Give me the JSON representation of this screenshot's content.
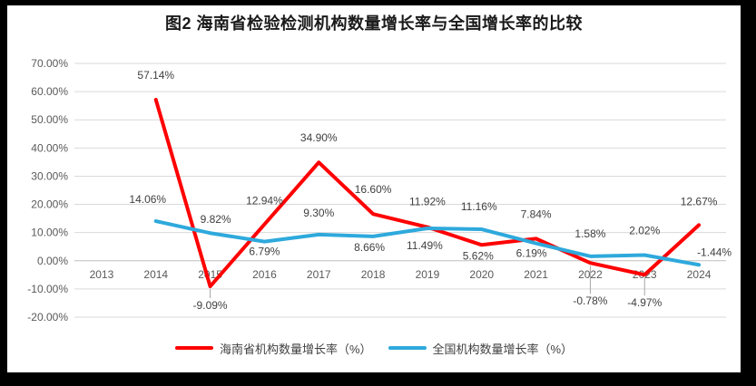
{
  "window": {
    "frame_background": "#000000",
    "chart_background": "#ffffff"
  },
  "title": "图2 海南省检验检测机构数量增长率与全国增长率的比较",
  "chart_data": {
    "type": "line",
    "title": "图2 海南省检验检测机构数量增长率与全国增长率的比较",
    "categories": [
      "2013",
      "2014",
      "2015",
      "2016",
      "2017",
      "2018",
      "2019",
      "2020",
      "2021",
      "2022",
      "2023",
      "2024"
    ],
    "series": [
      {
        "name": "海南省机构数量增长率（%）",
        "color": "#FF0000",
        "values": [
          null,
          57.14,
          -9.09,
          12.94,
          34.9,
          16.6,
          11.92,
          5.62,
          7.84,
          -0.78,
          -4.97,
          12.67
        ],
        "labels": [
          null,
          "57.14%",
          "-9.09%",
          "12.94%",
          "34.90%",
          "16.60%",
          "11.92%",
          "5.62%",
          "7.84%",
          "-0.78%",
          "-4.97%",
          "12.67%"
        ],
        "label_offsets": [
          null,
          [
            0,
            -27
          ],
          [
            0,
            21
          ],
          [
            0,
            -26
          ],
          [
            0,
            -27
          ],
          [
            0,
            -27
          ],
          [
            0,
            -28
          ],
          [
            -4,
            12
          ],
          [
            0,
            -27
          ],
          [
            0,
            42
          ],
          [
            0,
            31
          ],
          [
            0,
            -26
          ]
        ],
        "leader_line_indices": [
          2,
          9,
          10
        ]
      },
      {
        "name": "全国机构数量增长率（%）",
        "color": "#2EA9DC",
        "values": [
          null,
          14.06,
          9.82,
          6.79,
          9.3,
          8.66,
          11.49,
          11.16,
          6.19,
          1.58,
          2.02,
          -1.44
        ],
        "labels": [
          null,
          "14.06%",
          "9.82%",
          "6.79%",
          "9.30%",
          "8.66%",
          "11.49%",
          "11.16%",
          "6.19%",
          "1.58%",
          "2.02%",
          "-1.44%"
        ],
        "label_offsets": [
          null,
          [
            -9,
            -24
          ],
          [
            6,
            -15
          ],
          [
            0,
            11
          ],
          [
            0,
            -24
          ],
          [
            -4,
            12
          ],
          [
            -3,
            19
          ],
          [
            -3,
            -25
          ],
          [
            -5,
            11
          ],
          [
            0,
            -25
          ],
          [
            0,
            -27
          ],
          [
            17,
            -14
          ]
        ],
        "leader_line_indices": []
      }
    ],
    "ylim": [
      -20,
      70
    ],
    "ytick_step": 10,
    "ytick_labels": [
      "70.00%",
      "60.00%",
      "50.00%",
      "40.00%",
      "30.00%",
      "20.00%",
      "10.00%",
      "0.00%",
      "-10.00%",
      "-20.00%"
    ],
    "grid": true,
    "legend_position": "bottom",
    "line_width": 4,
    "colors": {
      "gridline": "#D9D9D9",
      "zero_axis_line": "#BFBFBF",
      "leader_line": "#A6A6A6",
      "axis_text": "#595959",
      "data_label_text": "#404040"
    }
  }
}
